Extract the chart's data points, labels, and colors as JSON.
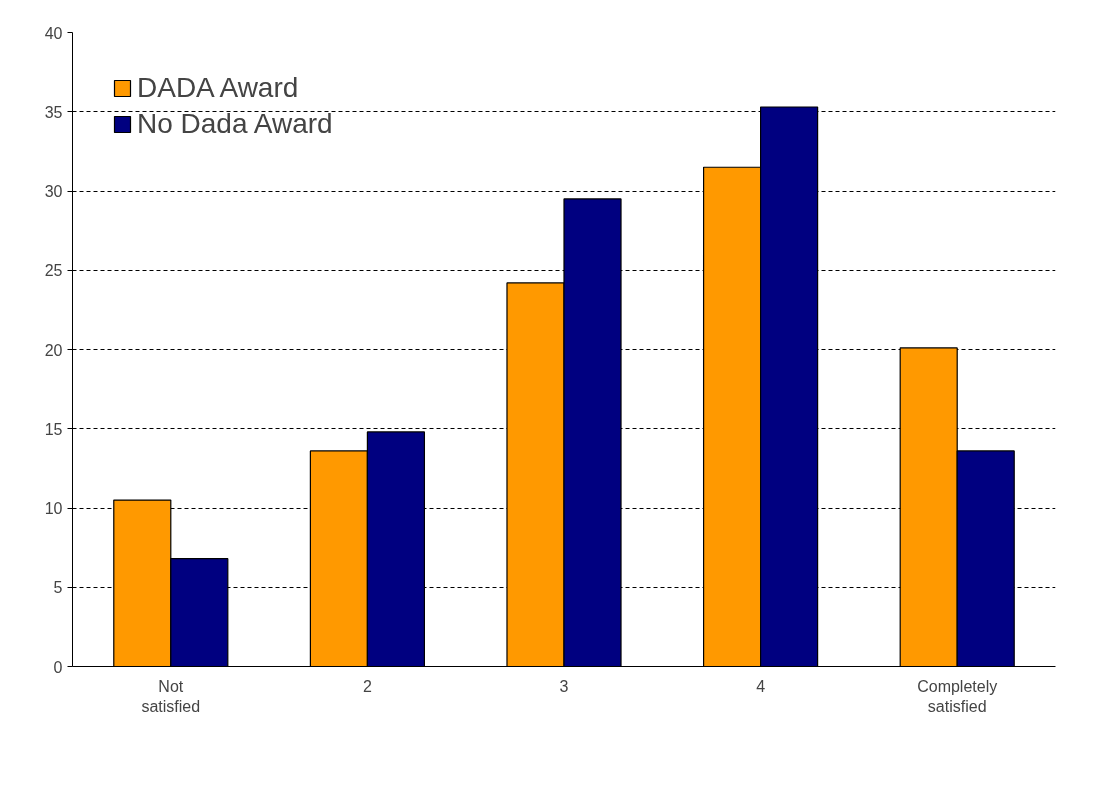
{
  "chart_data": {
    "type": "bar",
    "categories": [
      "Not satisfied",
      "2",
      "3",
      "4",
      "Completely satisfied"
    ],
    "series": [
      {
        "name": "DADA Award",
        "color": "#ff9900",
        "values": [
          10.5,
          13.6,
          24.2,
          31.5,
          20.1
        ]
      },
      {
        "name": "No Dada Award",
        "color": "#000080",
        "values": [
          6.8,
          14.8,
          29.5,
          35.3,
          13.6
        ]
      }
    ],
    "ylim": [
      0,
      40
    ],
    "yticks": [
      0,
      5,
      10,
      15,
      20,
      25,
      30,
      35,
      40
    ],
    "grid": "y",
    "legend": "top left"
  }
}
